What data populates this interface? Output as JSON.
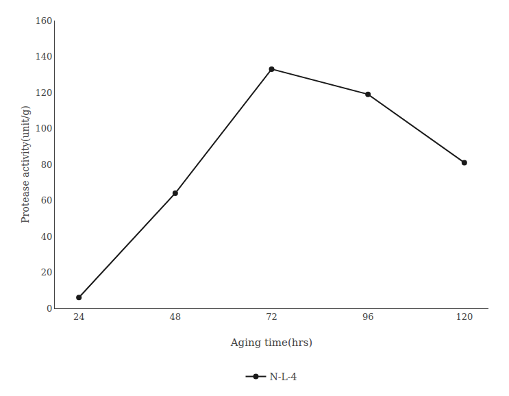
{
  "chart_data": {
    "type": "line",
    "x_label": "Aging time(hrs)",
    "y_label": "Protease activity(unit/g)",
    "x": [
      24,
      48,
      72,
      96,
      120
    ],
    "series": [
      {
        "name": "N‑L‑4",
        "color": "#1a1a1a",
        "marker": "circle",
        "values": [
          6,
          64,
          133,
          119,
          81
        ]
      }
    ],
    "xlim": [
      18,
      126
    ],
    "ylim": [
      0,
      160
    ],
    "xticks": [
      24,
      48,
      72,
      96,
      120
    ],
    "yticks": [
      0,
      20,
      40,
      60,
      80,
      100,
      120,
      140,
      160
    ],
    "grid": false,
    "legend": "bottom"
  }
}
